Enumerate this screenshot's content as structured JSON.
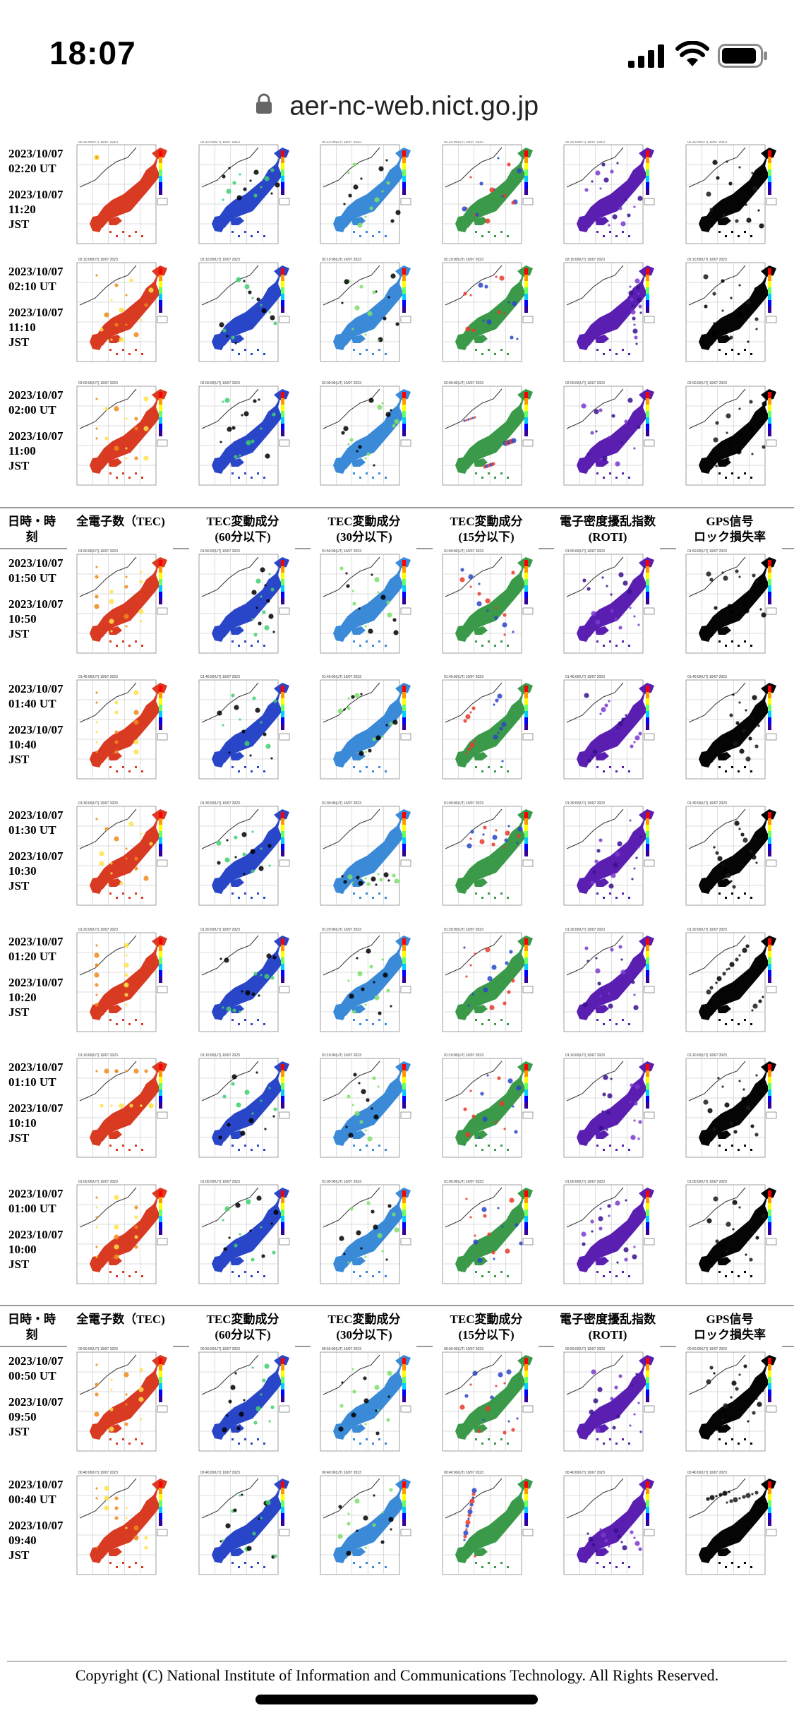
{
  "status_bar": {
    "time": "18:07"
  },
  "browser": {
    "url": "aer-nc-web.nict.go.jp"
  },
  "table_header": {
    "datetime": [
      "日時・時",
      "刻"
    ],
    "columns": [
      {
        "line1": "全電子数（TEC)",
        "line2": ""
      },
      {
        "line1": "TEC変動成分",
        "line2": "(60分以下)"
      },
      {
        "line1": "TEC変動成分",
        "line2": "(30分以下)"
      },
      {
        "line1": "TEC変動成分",
        "line2": "(15分以下)"
      },
      {
        "line1": "電子密度擾乱指数",
        "line2": "(ROTI)"
      },
      {
        "line1": "GPS信号",
        "line2": "ロック損失率"
      }
    ]
  },
  "rows": [
    {
      "ut_date": "2023/10/07",
      "ut_time": "02:20 UT",
      "jst_date": "2023/10/07",
      "jst_time": "11:20",
      "jst_label": "JST",
      "map_title": "02:20:00(UT) 10/07 2023"
    },
    {
      "ut_date": "2023/10/07",
      "ut_time": "02:10 UT",
      "jst_date": "2023/10/07",
      "jst_time": "11:10",
      "jst_label": "JST",
      "map_title": "02:10:00(UT) 10/07 2023"
    },
    {
      "ut_date": "2023/10/07",
      "ut_time": "02:00 UT",
      "jst_date": "2023/10/07",
      "jst_time": "11:00",
      "jst_label": "JST",
      "map_title": "02:00:00(UT) 10/07 2023"
    },
    {
      "ut_date": "2023/10/07",
      "ut_time": "01:50 UT",
      "jst_date": "2023/10/07",
      "jst_time": "10:50",
      "jst_label": "JST",
      "map_title": "01:50:00(UT) 10/07 2023"
    },
    {
      "ut_date": "2023/10/07",
      "ut_time": "01:40 UT",
      "jst_date": "2023/10/07",
      "jst_time": "10:40",
      "jst_label": "JST",
      "map_title": "01:40:00(UT) 10/07 2023"
    },
    {
      "ut_date": "2023/10/07",
      "ut_time": "01:30 UT",
      "jst_date": "2023/10/07",
      "jst_time": "10:30",
      "jst_label": "JST",
      "map_title": "01:30:00(UT) 10/07 2023"
    },
    {
      "ut_date": "2023/10/07",
      "ut_time": "01:20 UT",
      "jst_date": "2023/10/07",
      "jst_time": "10:20",
      "jst_label": "JST",
      "map_title": "01:20:00(UT) 10/07 2023"
    },
    {
      "ut_date": "2023/10/07",
      "ut_time": "01:10 UT",
      "jst_date": "2023/10/07",
      "jst_time": "10:10",
      "jst_label": "JST",
      "map_title": "01:10:00(UT) 10/07 2023"
    },
    {
      "ut_date": "2023/10/07",
      "ut_time": "01:00 UT",
      "jst_date": "2023/10/07",
      "jst_time": "10:00",
      "jst_label": "JST",
      "map_title": "01:00:00(UT) 10/07 2023"
    },
    {
      "ut_date": "2023/10/07",
      "ut_time": "00:50 UT",
      "jst_date": "2023/10/07",
      "jst_time": "09:50",
      "jst_label": "JST",
      "map_title": "00:50:00(UT) 10/07 2023"
    },
    {
      "ut_date": "2023/10/07",
      "ut_time": "00:40 UT",
      "jst_date": "2023/10/07",
      "jst_time": "09:40",
      "jst_label": "JST",
      "map_title": "00:40:00(UT) 10/07 2023"
    }
  ],
  "map_palettes": [
    {
      "name": "tec",
      "land": "#d83a22",
      "accent": "#f08a1a",
      "spots": "#ffe24a"
    },
    {
      "name": "tec60",
      "land": "#2a46c8",
      "accent": "#3fd070",
      "spots": "#000000"
    },
    {
      "name": "tec30",
      "land": "#3a8ad8",
      "accent": "#7ee06a",
      "spots": "#000000"
    },
    {
      "name": "tec15",
      "land": "#3a9a4a",
      "accent": "#e83b2a",
      "spots": "#2a46c8"
    },
    {
      "name": "roti",
      "land": "#5a1fb0",
      "accent": "#7a3ad0",
      "spots": "#3a0f90"
    },
    {
      "name": "lock",
      "land": "#050505",
      "accent": "#1a1a1a",
      "spots": "#000000"
    }
  ],
  "footer": {
    "copyright": "Copyright (C) National Institute of Information and Communications Technology. All Rights Reserved."
  }
}
